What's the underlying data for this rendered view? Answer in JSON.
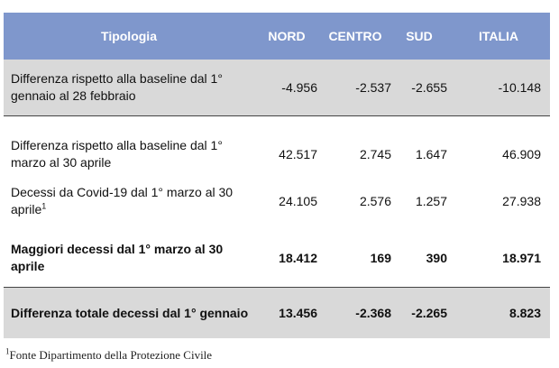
{
  "header": [
    "Tipologia",
    "NORD",
    "CENTRO",
    "SUD",
    "ITALIA"
  ],
  "rows": [
    {
      "label": "Differenza rispetto alla baseline dal 1° gennaio al 28 febbraio",
      "values": [
        "-4.956",
        "-2.537",
        "-2.655",
        "-10.148"
      ]
    },
    {
      "label": "Differenza rispetto alla baseline dal 1° marzo al 30 aprile",
      "values": [
        "42.517",
        "2.745",
        "1.647",
        "46.909"
      ]
    },
    {
      "label": "Decessi da Covid-19 dal 1° marzo al 30 aprile",
      "sup": "1",
      "values": [
        "24.105",
        "2.576",
        "1.257",
        "27.938"
      ]
    },
    {
      "label": "Maggiori decessi dal 1° marzo al 30 aprile",
      "values": [
        "18.412",
        "169",
        "390",
        "18.971"
      ]
    },
    {
      "label": "Differenza totale decessi dal 1° gennaio",
      "values": [
        "13.456",
        "-2.368",
        "-2.265",
        "8.823"
      ]
    }
  ],
  "footnote": {
    "sup": "1",
    "text": "Fonte Dipartimento della Protezione Civile"
  }
}
